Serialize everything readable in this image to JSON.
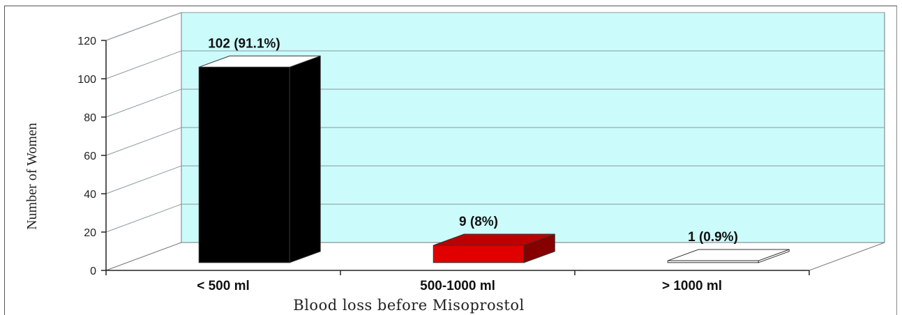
{
  "chart_data": {
    "type": "bar",
    "title": "",
    "xlabel": "Blood loss before Misoprostol",
    "ylabel": "Number of Women",
    "ylim": [
      0,
      120
    ],
    "yticks": [
      0,
      20,
      40,
      60,
      80,
      100,
      120
    ],
    "grid": true,
    "legend": "none",
    "three_d": true,
    "categories": [
      "< 500 ml",
      "500-1000 ml",
      "> 1000 ml"
    ],
    "values": [
      102,
      9,
      1
    ],
    "data_labels": [
      "102 (91.1%)",
      "9 (8%)",
      "1 (0.9%)"
    ],
    "bar_colors": [
      "#000000",
      "#e00000",
      "#ffffff"
    ],
    "wall_color": "#ccfbfb"
  }
}
